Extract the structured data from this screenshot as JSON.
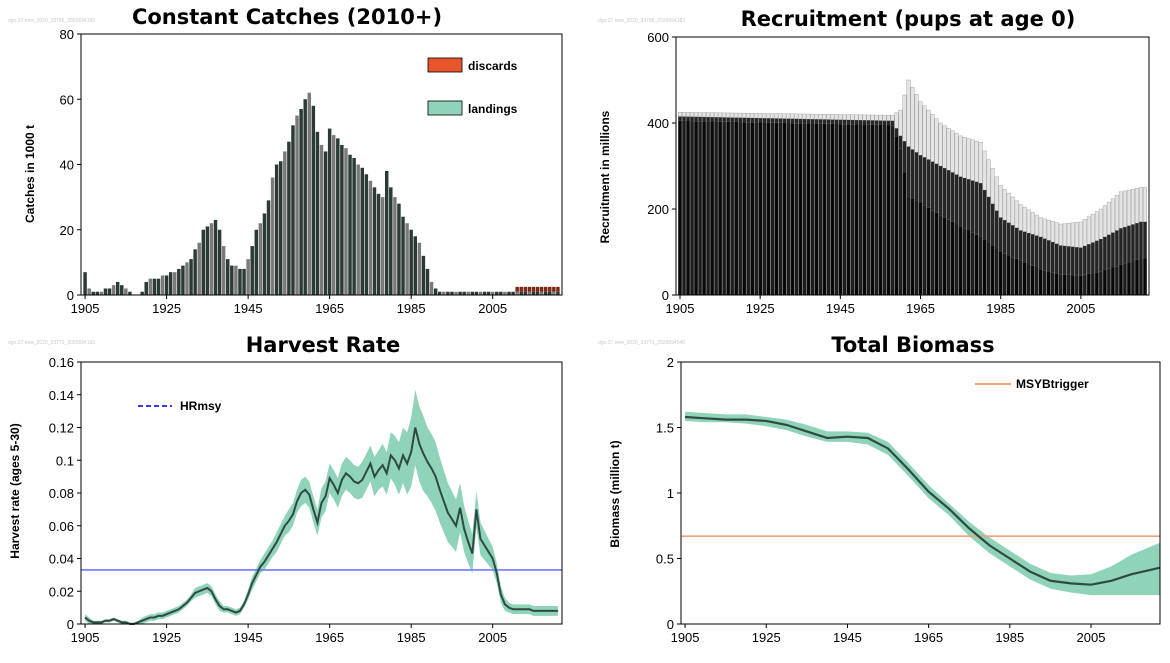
{
  "chart_data": [
    {
      "id": "catches",
      "type": "bar",
      "title": "Constant Catches (2010+)",
      "ylabel": "Catches in 1000 t",
      "xlabel": "",
      "xlim": [
        1904,
        2022
      ],
      "ylim": [
        0,
        80
      ],
      "xticks": [
        1905,
        1925,
        1945,
        1965,
        1985,
        2005
      ],
      "yticks": [
        0,
        20,
        40,
        60,
        80
      ],
      "legend": {
        "position": "top-right",
        "entries": [
          {
            "name": "discards",
            "color": "#e8552a"
          },
          {
            "name": "landings",
            "color": "#8fd4b9"
          }
        ]
      },
      "colors": {
        "landings_bar": "#2b3a34",
        "landings_alt": "#7a7a7a",
        "discards_bar": "#7a2a14"
      },
      "years_start": 1905,
      "landings": [
        7,
        2,
        1,
        1,
        1,
        2,
        2,
        3,
        4,
        3,
        2,
        1,
        0,
        0,
        1,
        4,
        5,
        5,
        5,
        6,
        6,
        7,
        7,
        8,
        9,
        10,
        11,
        14,
        16,
        20,
        21,
        22,
        23,
        20,
        15,
        11,
        9,
        9,
        8,
        8,
        11,
        15,
        20,
        22,
        25,
        29,
        36,
        40,
        41,
        44,
        47,
        52,
        55,
        57,
        60,
        62,
        58,
        50,
        46,
        44,
        51,
        49,
        48,
        46,
        45,
        43,
        42,
        40,
        39,
        37,
        35,
        33,
        31,
        30,
        38,
        33,
        30,
        28,
        24,
        22,
        20,
        18,
        16,
        12,
        8,
        4,
        2,
        1,
        1,
        1,
        1,
        1,
        1,
        1,
        1,
        1,
        1,
        1,
        1,
        1,
        1,
        1,
        1,
        1,
        1,
        1,
        1,
        1,
        1,
        1,
        1,
        1,
        1,
        1,
        1,
        1,
        1
      ],
      "discards": [
        0,
        0,
        0,
        0,
        0,
        0,
        0,
        0,
        0,
        0,
        0,
        0,
        0,
        0,
        0,
        0,
        0,
        0,
        0,
        0,
        0,
        0,
        0,
        0,
        0,
        0,
        0,
        0,
        0,
        0,
        0,
        0,
        0,
        0,
        0,
        0,
        0,
        0,
        0,
        0,
        0,
        0,
        0,
        0,
        0,
        0,
        0,
        0,
        0,
        0,
        0,
        0,
        0,
        0,
        0,
        0,
        0,
        0,
        0,
        0,
        0,
        0,
        0,
        0,
        0,
        0,
        0,
        0,
        0,
        0,
        0,
        0,
        0,
        0,
        0,
        0,
        0,
        0,
        0,
        0,
        0,
        0,
        0,
        0,
        0,
        0,
        0,
        0,
        0,
        0,
        0,
        0,
        0,
        0,
        0,
        0,
        0,
        0,
        0,
        0,
        0,
        0,
        0,
        0,
        0,
        0,
        1.5,
        1.5,
        1.5,
        1.5,
        1.5,
        1.5,
        1.5,
        1.5,
        1.5,
        1.5,
        1.5,
        1.5
      ]
    },
    {
      "id": "recruitment",
      "type": "bar",
      "title": "Recruitment (pups at age 0)",
      "ylabel": "Recruitment in millions",
      "xlabel": "",
      "xlim": [
        1904,
        2022
      ],
      "ylim": [
        0,
        600
      ],
      "xticks": [
        1905,
        1925,
        1945,
        1965,
        1985,
        2005
      ],
      "yticks": [
        0,
        200,
        400,
        600
      ],
      "colors": {
        "upper": "#e4e4e4",
        "upper_edge": "#9a9a9a",
        "middle": "#262626",
        "lower": "#080808"
      },
      "knots": {
        "years": [
          1905,
          1958,
          1960,
          1962,
          1965,
          1970,
          1975,
          1980,
          1985,
          1990,
          1995,
          2000,
          2005,
          2010,
          2015,
          2020
        ],
        "upper": [
          425,
          418,
          430,
          500,
          450,
          400,
          370,
          355,
          255,
          210,
          180,
          165,
          170,
          200,
          240,
          250
        ],
        "middle": [
          415,
          405,
          370,
          345,
          325,
          300,
          275,
          260,
          180,
          150,
          135,
          115,
          110,
          130,
          155,
          170
        ],
        "lower": [
          405,
          395,
          340,
          230,
          215,
          185,
          160,
          135,
          100,
          80,
          60,
          48,
          45,
          55,
          70,
          85
        ]
      }
    },
    {
      "id": "harvest",
      "type": "line",
      "title": "Harvest Rate",
      "ylabel": "Harvest rate (ages 5-30)",
      "xlabel": "",
      "xlim": [
        1904,
        2022
      ],
      "ylim": [
        0,
        0.16
      ],
      "xticks": [
        1905,
        1925,
        1945,
        1965,
        1985,
        2005
      ],
      "yticks": [
        0,
        0.02,
        0.04,
        0.06,
        0.08,
        0.1,
        0.12,
        0.14,
        0.16
      ],
      "legend": {
        "position": "top-left",
        "entries": [
          {
            "name": "HRmsy",
            "color": "#3b3bff",
            "style": "dashed"
          }
        ]
      },
      "colors": {
        "line": "#2f4a40",
        "band": "#8fd4b9",
        "hline": "#6f7cff"
      },
      "hline": 0.033,
      "x": [
        1905,
        1906,
        1907,
        1908,
        1909,
        1910,
        1911,
        1912,
        1913,
        1914,
        1915,
        1916,
        1917,
        1918,
        1919,
        1920,
        1921,
        1922,
        1923,
        1924,
        1925,
        1926,
        1927,
        1928,
        1929,
        1930,
        1931,
        1932,
        1933,
        1934,
        1935,
        1936,
        1937,
        1938,
        1939,
        1940,
        1941,
        1942,
        1943,
        1944,
        1945,
        1946,
        1947,
        1948,
        1949,
        1950,
        1951,
        1952,
        1953,
        1954,
        1955,
        1956,
        1957,
        1958,
        1959,
        1960,
        1961,
        1962,
        1963,
        1964,
        1965,
        1966,
        1967,
        1968,
        1969,
        1970,
        1971,
        1972,
        1973,
        1974,
        1975,
        1976,
        1977,
        1978,
        1979,
        1980,
        1981,
        1982,
        1983,
        1984,
        1985,
        1986,
        1987,
        1988,
        1989,
        1990,
        1991,
        1992,
        1993,
        1994,
        1995,
        1996,
        1997,
        1998,
        1999,
        2000,
        2001,
        2002,
        2003,
        2004,
        2005,
        2006,
        2007,
        2008,
        2009,
        2010,
        2011,
        2012,
        2013,
        2014,
        2015,
        2016,
        2017,
        2018,
        2019,
        2020,
        2021
      ],
      "y": [
        0.004,
        0.002,
        0.001,
        0.001,
        0.001,
        0.002,
        0.002,
        0.003,
        0.002,
        0.001,
        0.001,
        0.0,
        0.0,
        0.001,
        0.002,
        0.003,
        0.004,
        0.004,
        0.005,
        0.005,
        0.006,
        0.007,
        0.008,
        0.009,
        0.011,
        0.013,
        0.016,
        0.019,
        0.02,
        0.021,
        0.022,
        0.02,
        0.015,
        0.011,
        0.009,
        0.009,
        0.008,
        0.007,
        0.008,
        0.012,
        0.018,
        0.025,
        0.03,
        0.035,
        0.038,
        0.042,
        0.046,
        0.05,
        0.055,
        0.06,
        0.063,
        0.067,
        0.075,
        0.08,
        0.082,
        0.079,
        0.07,
        0.062,
        0.074,
        0.078,
        0.089,
        0.085,
        0.08,
        0.088,
        0.092,
        0.09,
        0.087,
        0.086,
        0.088,
        0.093,
        0.098,
        0.09,
        0.094,
        0.097,
        0.092,
        0.103,
        0.1,
        0.095,
        0.103,
        0.098,
        0.105,
        0.12,
        0.11,
        0.104,
        0.099,
        0.095,
        0.09,
        0.082,
        0.075,
        0.068,
        0.064,
        0.06,
        0.071,
        0.058,
        0.05,
        0.043,
        0.07,
        0.052,
        0.048,
        0.044,
        0.04,
        0.031,
        0.018,
        0.012,
        0.01,
        0.009,
        0.009,
        0.009,
        0.009,
        0.009,
        0.008,
        0.008,
        0.008,
        0.008,
        0.008,
        0.008,
        0.008
      ],
      "band_halfwidth": [
        0.001,
        0.001,
        0.0,
        0.0,
        0.0,
        0.0,
        0.0,
        0.0,
        0.0,
        0.0,
        0.0,
        0.0,
        0.0,
        0.0,
        0.001,
        0.001,
        0.001,
        0.001,
        0.001,
        0.001,
        0.001,
        0.001,
        0.001,
        0.001,
        0.001,
        0.001,
        0.001,
        0.002,
        0.002,
        0.002,
        0.002,
        0.002,
        0.002,
        0.002,
        0.001,
        0.001,
        0.001,
        0.001,
        0.001,
        0.001,
        0.002,
        0.003,
        0.003,
        0.003,
        0.004,
        0.004,
        0.004,
        0.005,
        0.005,
        0.005,
        0.006,
        0.006,
        0.006,
        0.007,
        0.007,
        0.007,
        0.007,
        0.007,
        0.008,
        0.008,
        0.008,
        0.008,
        0.008,
        0.009,
        0.009,
        0.009,
        0.009,
        0.009,
        0.01,
        0.01,
        0.01,
        0.011,
        0.011,
        0.012,
        0.012,
        0.013,
        0.014,
        0.015,
        0.016,
        0.018,
        0.02,
        0.022,
        0.022,
        0.022,
        0.02,
        0.02,
        0.02,
        0.019,
        0.018,
        0.017,
        0.016,
        0.015,
        0.014,
        0.013,
        0.012,
        0.011,
        0.01,
        0.009,
        0.008,
        0.007,
        0.006,
        0.005,
        0.004,
        0.003,
        0.002,
        0.002,
        0.002,
        0.002,
        0.002,
        0.002,
        0.002,
        0.002,
        0.002,
        0.002,
        0.002,
        0.002,
        0.002
      ]
    },
    {
      "id": "biomass",
      "type": "line",
      "title": "Total Biomass",
      "ylabel": "Biomass (million t)",
      "xlabel": "",
      "xlim": [
        1904,
        2022
      ],
      "ylim": [
        0,
        2
      ],
      "xticks": [
        1905,
        1925,
        1945,
        1965,
        1985,
        2005
      ],
      "yticks": [
        0,
        0.5,
        1,
        1.5,
        2
      ],
      "legend": {
        "position": "top-right",
        "entries": [
          {
            "name": "MSYBtrigger",
            "color": "#f4a07a"
          }
        ]
      },
      "colors": {
        "line": "#2f4a40",
        "band": "#8fd4b9",
        "hline": "#f4a07a"
      },
      "hline": 0.67,
      "x": [
        1905,
        1910,
        1915,
        1920,
        1925,
        1930,
        1935,
        1940,
        1945,
        1950,
        1955,
        1960,
        1965,
        1970,
        1975,
        1980,
        1985,
        1990,
        1995,
        2000,
        2005,
        2010,
        2015,
        2022
      ],
      "y": [
        1.58,
        1.57,
        1.56,
        1.56,
        1.55,
        1.52,
        1.47,
        1.42,
        1.43,
        1.42,
        1.34,
        1.18,
        1.01,
        0.88,
        0.73,
        0.6,
        0.5,
        0.4,
        0.33,
        0.31,
        0.3,
        0.33,
        0.38,
        0.43
      ],
      "lower": [
        1.55,
        1.54,
        1.54,
        1.53,
        1.51,
        1.48,
        1.43,
        1.39,
        1.39,
        1.37,
        1.29,
        1.13,
        0.96,
        0.83,
        0.67,
        0.54,
        0.44,
        0.34,
        0.27,
        0.24,
        0.22,
        0.22,
        0.22,
        0.22
      ],
      "upper": [
        1.62,
        1.61,
        1.6,
        1.6,
        1.58,
        1.56,
        1.52,
        1.47,
        1.47,
        1.46,
        1.39,
        1.23,
        1.06,
        0.92,
        0.78,
        0.66,
        0.56,
        0.46,
        0.39,
        0.37,
        0.38,
        0.44,
        0.53,
        0.62
      ]
    }
  ]
}
